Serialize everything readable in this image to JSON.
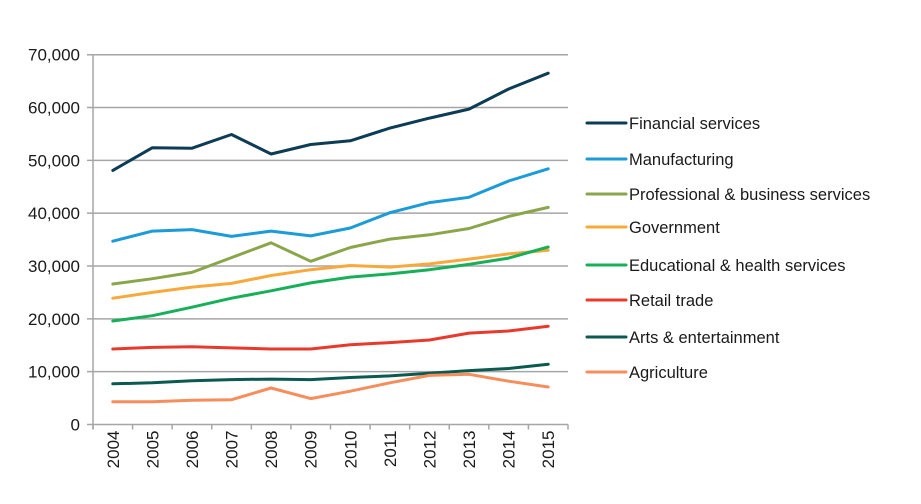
{
  "chart_data": {
    "type": "line",
    "title": "",
    "xlabel": "",
    "ylabel": "",
    "x": [
      "2004",
      "2005",
      "2006",
      "2007",
      "2008",
      "2009",
      "2010",
      "2011",
      "2012",
      "2013",
      "2014",
      "2015"
    ],
    "ylim": [
      0,
      70000
    ],
    "yticks": [
      0,
      10000,
      20000,
      30000,
      40000,
      50000,
      60000,
      70000
    ],
    "ytick_labels": [
      "0",
      "10,000",
      "20,000",
      "30,000",
      "40,000",
      "50,000",
      "60,000",
      "70,000"
    ],
    "grid": true,
    "legend_position": "right",
    "series": [
      {
        "name": "Financial services",
        "color": "#0d3c55",
        "values": [
          48100,
          52400,
          52300,
          54900,
          51200,
          53000,
          53700,
          56100,
          58000,
          59700,
          63500,
          66500
        ]
      },
      {
        "name": "Manufacturing",
        "color": "#1b9bd7",
        "values": [
          34700,
          36600,
          36900,
          35600,
          36600,
          35700,
          37200,
          40100,
          42000,
          43000,
          46100,
          48400
        ]
      },
      {
        "name": "Professional & business services",
        "color": "#8aa64a",
        "values": [
          26600,
          27600,
          28800,
          31600,
          34400,
          30900,
          33500,
          35100,
          35900,
          37100,
          39400,
          41100
        ]
      },
      {
        "name": "Government",
        "color": "#f9a93b",
        "values": [
          23900,
          25000,
          26000,
          26700,
          28200,
          29300,
          30100,
          29800,
          30400,
          31300,
          32300,
          33000
        ]
      },
      {
        "name": "Educational & health services",
        "color": "#17b059",
        "values": [
          19600,
          20600,
          22200,
          23900,
          25300,
          26800,
          27900,
          28500,
          29300,
          30300,
          31500,
          33600
        ]
      },
      {
        "name": "Retail trade",
        "color": "#e8392d",
        "values": [
          14300,
          14600,
          14700,
          14500,
          14300,
          14300,
          15100,
          15500,
          16000,
          17300,
          17700,
          18600
        ]
      },
      {
        "name": "Arts & entertainment",
        "color": "#0b5a4f",
        "values": [
          7700,
          7900,
          8300,
          8500,
          8600,
          8500,
          8900,
          9200,
          9700,
          10200,
          10600,
          11400
        ]
      },
      {
        "name": "Agriculture",
        "color": "#f68d5c",
        "values": [
          4300,
          4300,
          4600,
          4700,
          6900,
          4900,
          6300,
          7900,
          9300,
          9500,
          8200,
          7100
        ]
      }
    ]
  }
}
